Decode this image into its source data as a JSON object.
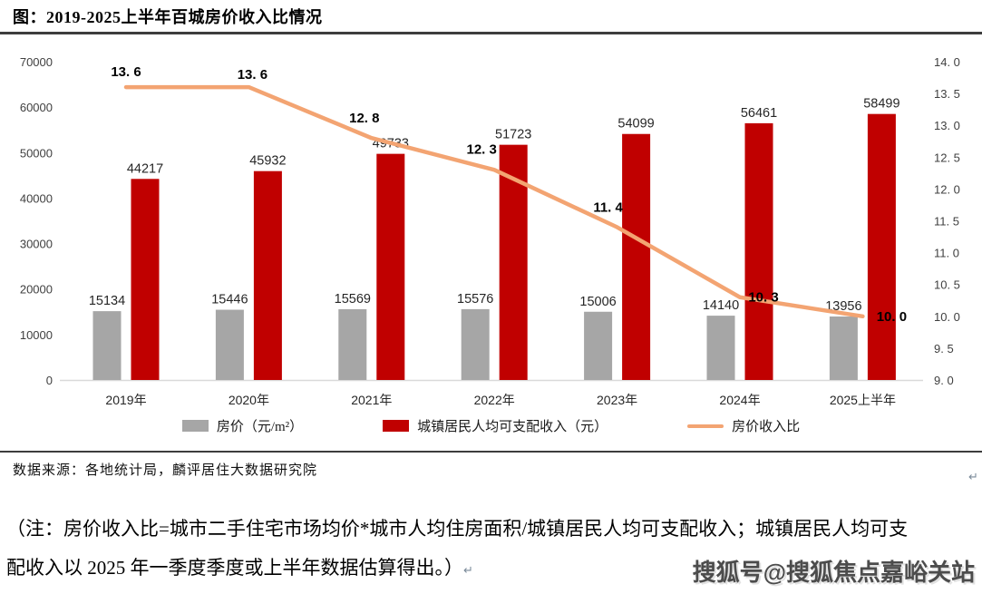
{
  "page": {
    "title": "图：2019-2025上半年百城房价收入比情况",
    "source": "数据来源：各地统计局，麟评居住大数据研究院",
    "note": "（注：房价收入比=城市二手住宅市场均价*城市人均住房面积/城镇居民人均可支配收入；城镇居民人均可支配收入以 2025 年一季度季度或上半年数据估算得出。）",
    "return_mark": "↵",
    "watermark": "搜狐号@搜狐焦点嘉峪关站"
  },
  "chart_data": {
    "type": "bar+line combo",
    "title": "图：2019-2025上半年百城房价收入比情况",
    "categories": [
      "2019年",
      "2020年",
      "2021年",
      "2022年",
      "2023年",
      "2024年",
      "2025上半年"
    ],
    "series": [
      {
        "name": "房价（元/m²）",
        "type": "bar",
        "axis": "left",
        "color": "#A6A6A6",
        "values": [
          15134,
          15446,
          15569,
          15576,
          15006,
          14140,
          13956
        ]
      },
      {
        "name": "城镇居民人均可支配收入（元）",
        "type": "bar",
        "axis": "left",
        "color": "#C00000",
        "values": [
          44217,
          45932,
          49733,
          51723,
          54099,
          56461,
          58499
        ]
      },
      {
        "name": "房价收入比",
        "type": "line",
        "axis": "right",
        "color": "#F3A472",
        "values": [
          13.6,
          13.6,
          12.8,
          12.3,
          11.4,
          10.3,
          10.0
        ],
        "value_labels": [
          "13. 6",
          "13. 6",
          "12. 8",
          "12. 3",
          "11. 4",
          "10. 3",
          "10. 0"
        ],
        "label_offsets": [
          [
            0,
            -12
          ],
          [
            4,
            -9
          ],
          [
            -8,
            -17
          ],
          [
            -14,
            -18
          ],
          [
            -10,
            -17
          ],
          [
            26,
            5
          ],
          [
            32,
            5
          ]
        ]
      }
    ],
    "left_axis": {
      "min": 0,
      "max": 70000,
      "step": 10000,
      "ticks": [
        "0",
        "10000",
        "20000",
        "30000",
        "40000",
        "50000",
        "60000",
        "70000"
      ]
    },
    "right_axis": {
      "min": 9.0,
      "max": 14.0,
      "step": 0.5,
      "ticks": [
        "9. 0",
        "9. 5",
        "10. 0",
        "10. 5",
        "11. 0",
        "11. 5",
        "12. 0",
        "12. 5",
        "13. 0",
        "13. 5",
        "14. 0"
      ]
    },
    "grid": false,
    "legend_position": "bottom",
    "axis_line_color": "#D9D9D9"
  }
}
